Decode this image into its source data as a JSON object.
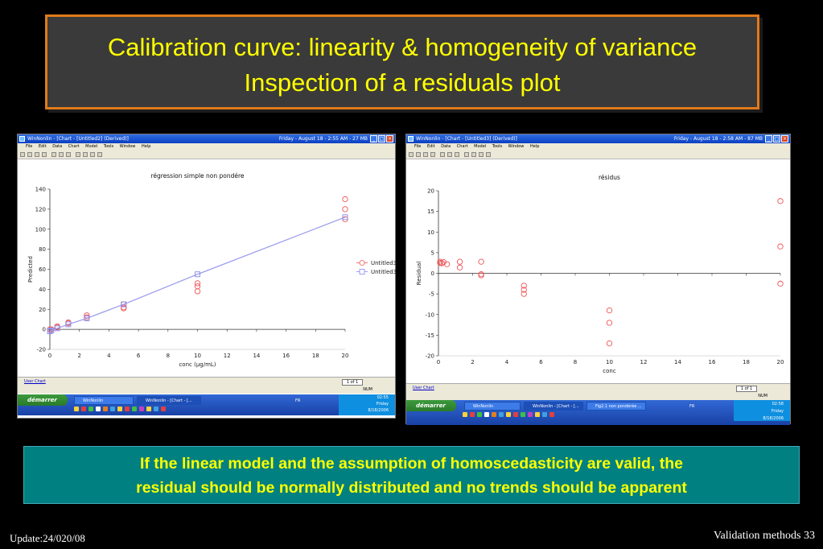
{
  "slide": {
    "title_line1": "Calibration curve: linearity &  homogeneity of variance",
    "title_line2": "Inspection of a  residuals plot",
    "note_line1": "If the linear model and the assumption of homoscedasticity are valid, the",
    "note_line2": "residual should be normally distributed and no trends should be apparent",
    "footer_left": "Update:24/020/08",
    "footer_right": "Validation methods 33"
  },
  "colors": {
    "title_text": "#ffff00",
    "title_border": "#e07a1a",
    "note_bg": "#008080",
    "observed_marker": "#ee5555",
    "predicted_marker": "#8888ee",
    "fit_line": "#9999ee"
  },
  "window_left": {
    "title": "WinNonlin - [Chart - [Untitled2] (Derived)]",
    "status": "Friday - August 18 - 2:55 AM - 27 MB",
    "menu": [
      "File",
      "Edit",
      "Data",
      "Chart",
      "Model",
      "Tools",
      "Window",
      "Help"
    ],
    "tab_label": "User Chart",
    "page_label": "1 of 1",
    "status_num": "NUM",
    "start_label": "démarrer",
    "task_items": [
      "WinNonlin",
      "WinNonlin - [Chart - [..."
    ],
    "task_tray_fr": "FR",
    "clock": [
      "02:55",
      "Friday",
      "8/18/2006"
    ]
  },
  "window_right": {
    "title": "WinNonlin - [Chart - [Untitled3] (Derived)]",
    "status": "Friday - August 18 - 2:58 AM - 87 MB",
    "menu": [
      "File",
      "Edit",
      "Data",
      "Chart",
      "Model",
      "Tools",
      "Window",
      "Help"
    ],
    "tab_label": "User Chart",
    "page_label": "1 of 1",
    "status_num": "NUM",
    "start_label": "démarrer",
    "task_items": [
      "WinNonlin",
      "WinNonlin - [Chart - [...",
      "Fig2.1 non pondérée ..."
    ],
    "task_tray_fr": "FR",
    "clock": [
      "02:58",
      "Friday",
      "8/18/2006"
    ]
  },
  "chart_data": [
    {
      "type": "scatter",
      "title": "régression simple non pondére",
      "xlabel": "conc (µg/mL)",
      "ylabel": "Predicted",
      "xlim": [
        0,
        20
      ],
      "ylim": [
        -20,
        140
      ],
      "xticks": [
        "0",
        "2",
        "4",
        "6",
        "8",
        "10",
        "12",
        "14",
        "16",
        "18",
        "20"
      ],
      "yticks": [
        "-20",
        "0",
        "20",
        "40",
        "60",
        "80",
        "100",
        "120",
        "140"
      ],
      "legend_position": "right",
      "series": [
        {
          "name": "Untitled3",
          "marker": "circle",
          "points": [
            [
              0,
              0
            ],
            [
              0.1,
              0
            ],
            [
              0.5,
              2
            ],
            [
              0.5,
              3
            ],
            [
              1.25,
              6
            ],
            [
              1.25,
              7
            ],
            [
              2.5,
              12
            ],
            [
              2.5,
              14
            ],
            [
              5,
              21
            ],
            [
              5,
              22
            ],
            [
              5,
              25
            ],
            [
              10,
              38
            ],
            [
              10,
              43
            ],
            [
              10,
              46
            ],
            [
              20,
              110
            ],
            [
              20,
              120
            ],
            [
              20,
              130
            ]
          ]
        },
        {
          "name": "Untitled3",
          "marker": "square",
          "line": true,
          "points": [
            [
              0,
              -2
            ],
            [
              0.1,
              -1
            ],
            [
              0.5,
              1
            ],
            [
              1.25,
              5
            ],
            [
              2.5,
              11
            ],
            [
              5,
              25
            ],
            [
              10,
              55
            ],
            [
              20,
              112
            ]
          ]
        }
      ]
    },
    {
      "type": "scatter",
      "title": "résidus",
      "xlabel": "conc",
      "ylabel": "Residual",
      "xlim": [
        0,
        20
      ],
      "ylim": [
        -20,
        20
      ],
      "xticks": [
        "0",
        "2",
        "4",
        "6",
        "8",
        "10",
        "12",
        "14",
        "16",
        "18",
        "20"
      ],
      "yticks": [
        "-20",
        "-15",
        "-10",
        "-5",
        "0",
        "5",
        "10",
        "15",
        "20"
      ],
      "series": [
        {
          "marker": "circle",
          "points": [
            [
              0.1,
              2.8
            ],
            [
              0.1,
              2.5
            ],
            [
              0.2,
              2.4
            ],
            [
              0.3,
              2.7
            ],
            [
              0.5,
              2.2
            ],
            [
              1.25,
              2.8
            ],
            [
              1.25,
              1.4
            ],
            [
              2.5,
              2.8
            ],
            [
              2.5,
              -0.2
            ],
            [
              2.5,
              -0.5
            ],
            [
              5,
              -3
            ],
            [
              5,
              -4
            ],
            [
              5,
              -5
            ],
            [
              10,
              -9
            ],
            [
              10,
              -12
            ],
            [
              10,
              -17
            ],
            [
              20,
              17.5
            ],
            [
              20,
              6.5
            ],
            [
              20,
              -2.5
            ]
          ]
        }
      ]
    }
  ]
}
